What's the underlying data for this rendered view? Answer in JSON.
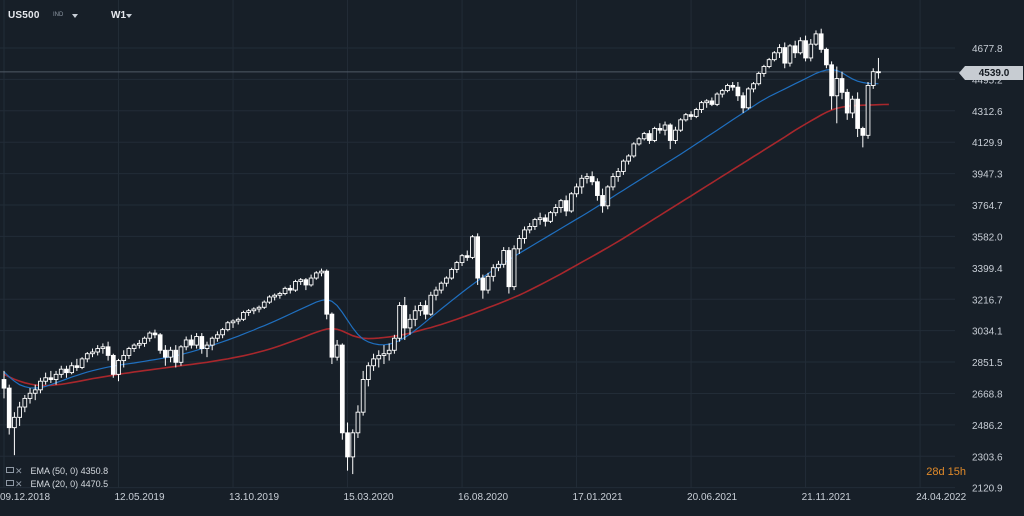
{
  "toolbar": {
    "symbol": "US500",
    "index_tag": "IND",
    "timeframe": "W1",
    "symbol_icon": "chevron-down-icon",
    "timeframe_icon": "chevron-down-icon"
  },
  "indicators": [
    {
      "label": "EMA (50, 0) 4350.8",
      "color": "#a8272c"
    },
    {
      "label": "EMA (20, 0) 4470.5",
      "color": "#1f6fbf"
    }
  ],
  "countdown": "28d 15h",
  "current_price": "4539.0",
  "colors": {
    "background": "#171f28",
    "grid": "#222c37",
    "candle": "#ffffff",
    "ema50": "#a8272c",
    "ema20": "#1f6fbf",
    "countdown": "#e08a2a",
    "price_line": "#505a66"
  },
  "chart_data": {
    "type": "candlestick",
    "y_ticks": [
      "4677.8",
      "4495.2",
      "4312.6",
      "4129.9",
      "3947.3",
      "3764.7",
      "3582.0",
      "3399.4",
      "3216.7",
      "3034.1",
      "2851.5",
      "2668.8",
      "2486.2",
      "2303.6",
      "2120.9"
    ],
    "y_tick_values": [
      4677.8,
      4495.2,
      4312.6,
      4129.9,
      3947.3,
      3764.7,
      3582.0,
      3399.4,
      3216.7,
      3034.1,
      2851.5,
      2668.8,
      2486.2,
      2303.6,
      2120.9
    ],
    "ylim": [
      2100,
      4790
    ],
    "x_ticks": [
      "09.12.2018",
      "12.05.2019",
      "13.10.2019",
      "15.03.2020",
      "16.08.2020",
      "17.01.2021",
      "20.06.2021",
      "21.11.2021",
      "24.04.2022"
    ],
    "x_tick_weeks": [
      0,
      22,
      44,
      66,
      88,
      110,
      132,
      154,
      176
    ],
    "current_price": 4539.0,
    "series": [
      {
        "name": "EMA (50, 0)",
        "values": [
          2780,
          2765,
          2752,
          2741,
          2731,
          2724,
          2718,
          2716,
          2715,
          2716,
          2719,
          2722,
          2727,
          2732,
          2737,
          2743,
          2749,
          2755,
          2760,
          2765,
          2770,
          2775,
          2780,
          2785,
          2789,
          2794,
          2798,
          2802,
          2806,
          2810,
          2814,
          2818,
          2822,
          2826,
          2830,
          2834,
          2838,
          2842,
          2846,
          2850,
          2855,
          2860,
          2865,
          2870,
          2876,
          2882,
          2888,
          2895,
          2902,
          2910,
          2918,
          2927,
          2936,
          2946,
          2957,
          2968,
          2979,
          2990,
          3002,
          3014,
          3025,
          3035,
          3043,
          3046,
          3042,
          3032,
          3018,
          3005,
          2996,
          2990,
          2988,
          2989,
          2991,
          2994,
          2998,
          3002,
          3007,
          3013,
          3020,
          3028,
          3036,
          3044,
          3052,
          3061,
          3070,
          3080,
          3090,
          3100,
          3111,
          3122,
          3133,
          3145,
          3156,
          3168,
          3179,
          3191,
          3203,
          3215,
          3228,
          3241,
          3255,
          3270,
          3285,
          3300,
          3316,
          3332,
          3348,
          3364,
          3381,
          3398,
          3415,
          3432,
          3449,
          3466,
          3483,
          3500,
          3517,
          3535,
          3553,
          3571,
          3590,
          3609,
          3628,
          3647,
          3666,
          3685,
          3704,
          3723,
          3742,
          3761,
          3780,
          3799,
          3818,
          3837,
          3856,
          3875,
          3894,
          3913,
          3932,
          3951,
          3970,
          3989,
          4008,
          4027,
          4046,
          4065,
          4084,
          4103,
          4122,
          4141,
          4160,
          4180,
          4200,
          4218,
          4236,
          4254,
          4271,
          4288,
          4304,
          4317,
          4327,
          4334,
          4339,
          4342,
          4344,
          4345,
          4346,
          4347,
          4348,
          4349,
          4350
        ]
      },
      {
        "name": "EMA (20, 0)",
        "values": [
          2795,
          2765,
          2740,
          2720,
          2708,
          2702,
          2700,
          2703,
          2710,
          2720,
          2731,
          2742,
          2753,
          2764,
          2774,
          2784,
          2793,
          2801,
          2809,
          2816,
          2822,
          2828,
          2833,
          2838,
          2842,
          2846,
          2851,
          2856,
          2861,
          2866,
          2871,
          2876,
          2882,
          2888,
          2895,
          2903,
          2911,
          2920,
          2929,
          2939,
          2949,
          2959,
          2969,
          2980,
          2991,
          3002,
          3014,
          3026,
          3038,
          3051,
          3063,
          3076,
          3089,
          3103,
          3117,
          3131,
          3145,
          3159,
          3173,
          3187,
          3200,
          3210,
          3215,
          3205,
          3180,
          3140,
          3095,
          3050,
          3012,
          2985,
          2968,
          2958,
          2953,
          2952,
          2956,
          2964,
          2977,
          2994,
          3014,
          3037,
          3060,
          3085,
          3110,
          3135,
          3160,
          3184,
          3208,
          3232,
          3256,
          3279,
          3302,
          3324,
          3345,
          3366,
          3387,
          3407,
          3427,
          3446,
          3465,
          3484,
          3502,
          3520,
          3538,
          3556,
          3574,
          3592,
          3610,
          3628,
          3646,
          3664,
          3682,
          3700,
          3718,
          3737,
          3756,
          3775,
          3794,
          3813,
          3832,
          3851,
          3870,
          3889,
          3908,
          3927,
          3946,
          3965,
          3984,
          4003,
          4022,
          4041,
          4060,
          4080,
          4100,
          4120,
          4140,
          4160,
          4180,
          4200,
          4220,
          4240,
          4260,
          4280,
          4300,
          4320,
          4340,
          4360,
          4378,
          4395,
          4410,
          4425,
          4440,
          4455,
          4470,
          4485,
          4500,
          4515,
          4530,
          4542,
          4550,
          4552,
          4547,
          4535,
          4515,
          4498,
          4485,
          4477,
          4472,
          4470,
          4470
        ]
      }
    ],
    "candles": [
      [
        2750,
        2800,
        2640,
        2700
      ],
      [
        2700,
        2720,
        2430,
        2470
      ],
      [
        2470,
        2560,
        2310,
        2530
      ],
      [
        2530,
        2620,
        2480,
        2590
      ],
      [
        2590,
        2660,
        2560,
        2640
      ],
      [
        2640,
        2700,
        2610,
        2670
      ],
      [
        2670,
        2720,
        2630,
        2690
      ],
      [
        2690,
        2760,
        2670,
        2740
      ],
      [
        2740,
        2790,
        2720,
        2760
      ],
      [
        2760,
        2800,
        2730,
        2750
      ],
      [
        2750,
        2800,
        2720,
        2780
      ],
      [
        2780,
        2830,
        2760,
        2810
      ],
      [
        2810,
        2830,
        2760,
        2790
      ],
      [
        2790,
        2850,
        2780,
        2830
      ],
      [
        2830,
        2870,
        2800,
        2820
      ],
      [
        2820,
        2880,
        2810,
        2870
      ],
      [
        2870,
        2910,
        2850,
        2900
      ],
      [
        2900,
        2930,
        2880,
        2910
      ],
      [
        2910,
        2950,
        2890,
        2930
      ],
      [
        2930,
        2960,
        2900,
        2940
      ],
      [
        2940,
        2970,
        2860,
        2890
      ],
      [
        2890,
        2900,
        2760,
        2780
      ],
      [
        2780,
        2870,
        2740,
        2860
      ],
      [
        2860,
        2920,
        2820,
        2890
      ],
      [
        2890,
        2940,
        2870,
        2930
      ],
      [
        2930,
        2960,
        2910,
        2950
      ],
      [
        2950,
        2980,
        2930,
        2960
      ],
      [
        2960,
        3000,
        2940,
        2990
      ],
      [
        2990,
        3030,
        2970,
        3020
      ],
      [
        3020,
        3040,
        2990,
        3010
      ],
      [
        3010,
        3020,
        2900,
        2920
      ],
      [
        2920,
        2950,
        2830,
        2880
      ],
      [
        2880,
        2940,
        2850,
        2920
      ],
      [
        2920,
        2950,
        2820,
        2850
      ],
      [
        2850,
        2950,
        2830,
        2940
      ],
      [
        2940,
        3000,
        2920,
        2980
      ],
      [
        2980,
        3010,
        2930,
        2950
      ],
      [
        2950,
        3020,
        2930,
        3000
      ],
      [
        3000,
        3020,
        2900,
        2930
      ],
      [
        2930,
        2970,
        2880,
        2950
      ],
      [
        2950,
        3000,
        2920,
        2990
      ],
      [
        2990,
        3030,
        2970,
        3010
      ],
      [
        3010,
        3050,
        2990,
        3040
      ],
      [
        3040,
        3090,
        3030,
        3080
      ],
      [
        3080,
        3100,
        3050,
        3090
      ],
      [
        3090,
        3110,
        3070,
        3100
      ],
      [
        3100,
        3150,
        3090,
        3140
      ],
      [
        3140,
        3160,
        3120,
        3150
      ],
      [
        3150,
        3170,
        3130,
        3160
      ],
      [
        3160,
        3180,
        3140,
        3170
      ],
      [
        3170,
        3210,
        3160,
        3200
      ],
      [
        3200,
        3240,
        3190,
        3230
      ],
      [
        3230,
        3250,
        3210,
        3240
      ],
      [
        3240,
        3260,
        3220,
        3250
      ],
      [
        3250,
        3290,
        3240,
        3280
      ],
      [
        3280,
        3300,
        3250,
        3270
      ],
      [
        3270,
        3330,
        3260,
        3320
      ],
      [
        3320,
        3340,
        3300,
        3330
      ],
      [
        3330,
        3340,
        3270,
        3300
      ],
      [
        3300,
        3360,
        3290,
        3340
      ],
      [
        3340,
        3380,
        3330,
        3370
      ],
      [
        3370,
        3395,
        3350,
        3380
      ],
      [
        3380,
        3390,
        3100,
        3130
      ],
      [
        3130,
        3140,
        2840,
        2880
      ],
      [
        2880,
        2980,
        2860,
        2950
      ],
      [
        2950,
        2960,
        2400,
        2440
      ],
      [
        2440,
        2500,
        2220,
        2300
      ],
      [
        2300,
        2460,
        2200,
        2440
      ],
      [
        2440,
        2600,
        2410,
        2560
      ],
      [
        2560,
        2800,
        2540,
        2750
      ],
      [
        2750,
        2850,
        2710,
        2830
      ],
      [
        2830,
        2900,
        2800,
        2870
      ],
      [
        2870,
        2920,
        2820,
        2890
      ],
      [
        2890,
        2950,
        2840,
        2900
      ],
      [
        2900,
        2960,
        2860,
        2920
      ],
      [
        2920,
        3010,
        2900,
        2990
      ],
      [
        2990,
        3200,
        2970,
        3180
      ],
      [
        3180,
        3230,
        2980,
        3050
      ],
      [
        3050,
        3130,
        3010,
        3100
      ],
      [
        3100,
        3180,
        3060,
        3150
      ],
      [
        3150,
        3200,
        3120,
        3180
      ],
      [
        3180,
        3210,
        3100,
        3130
      ],
      [
        3130,
        3260,
        3120,
        3240
      ],
      [
        3240,
        3290,
        3210,
        3270
      ],
      [
        3270,
        3320,
        3250,
        3310
      ],
      [
        3310,
        3350,
        3290,
        3340
      ],
      [
        3340,
        3400,
        3330,
        3390
      ],
      [
        3390,
        3440,
        3370,
        3430
      ],
      [
        3430,
        3480,
        3410,
        3470
      ],
      [
        3470,
        3500,
        3440,
        3460
      ],
      [
        3460,
        3590,
        3450,
        3580
      ],
      [
        3580,
        3600,
        3300,
        3340
      ],
      [
        3340,
        3360,
        3220,
        3270
      ],
      [
        3270,
        3370,
        3250,
        3350
      ],
      [
        3350,
        3420,
        3320,
        3400
      ],
      [
        3400,
        3440,
        3380,
        3420
      ],
      [
        3420,
        3520,
        3400,
        3500
      ],
      [
        3500,
        3520,
        3250,
        3290
      ],
      [
        3290,
        3530,
        3270,
        3510
      ],
      [
        3510,
        3590,
        3480,
        3570
      ],
      [
        3570,
        3640,
        3540,
        3620
      ],
      [
        3620,
        3660,
        3600,
        3640
      ],
      [
        3640,
        3690,
        3620,
        3680
      ],
      [
        3680,
        3720,
        3650,
        3690
      ],
      [
        3690,
        3710,
        3640,
        3670
      ],
      [
        3670,
        3730,
        3660,
        3720
      ],
      [
        3720,
        3770,
        3700,
        3750
      ],
      [
        3750,
        3800,
        3720,
        3790
      ],
      [
        3790,
        3820,
        3700,
        3730
      ],
      [
        3730,
        3840,
        3720,
        3830
      ],
      [
        3830,
        3890,
        3810,
        3870
      ],
      [
        3870,
        3940,
        3830,
        3920
      ],
      [
        3920,
        3950,
        3890,
        3930
      ],
      [
        3930,
        3960,
        3880,
        3900
      ],
      [
        3900,
        3920,
        3790,
        3820
      ],
      [
        3820,
        3860,
        3720,
        3760
      ],
      [
        3760,
        3880,
        3740,
        3870
      ],
      [
        3870,
        3950,
        3850,
        3930
      ],
      [
        3930,
        3980,
        3900,
        3960
      ],
      [
        3960,
        4030,
        3940,
        4020
      ],
      [
        4020,
        4060,
        4000,
        4050
      ],
      [
        4050,
        4130,
        4040,
        4120
      ],
      [
        4120,
        4160,
        4110,
        4150
      ],
      [
        4150,
        4190,
        4140,
        4180
      ],
      [
        4180,
        4200,
        4120,
        4140
      ],
      [
        4140,
        4220,
        4130,
        4210
      ],
      [
        4210,
        4240,
        4180,
        4200
      ],
      [
        4200,
        4250,
        4170,
        4230
      ],
      [
        4230,
        4240,
        4090,
        4140
      ],
      [
        4140,
        4220,
        4120,
        4200
      ],
      [
        4200,
        4270,
        4190,
        4260
      ],
      [
        4260,
        4300,
        4250,
        4290
      ],
      [
        4290,
        4310,
        4260,
        4280
      ],
      [
        4280,
        4330,
        4270,
        4320
      ],
      [
        4320,
        4370,
        4300,
        4360
      ],
      [
        4360,
        4380,
        4330,
        4370
      ],
      [
        4370,
        4390,
        4340,
        4350
      ],
      [
        4350,
        4420,
        4340,
        4410
      ],
      [
        4410,
        4440,
        4390,
        4430
      ],
      [
        4430,
        4470,
        4420,
        4460
      ],
      [
        4460,
        4480,
        4430,
        4450
      ],
      [
        4450,
        4480,
        4370,
        4400
      ],
      [
        4400,
        4420,
        4300,
        4330
      ],
      [
        4330,
        4450,
        4320,
        4440
      ],
      [
        4440,
        4480,
        4420,
        4470
      ],
      [
        4470,
        4540,
        4460,
        4530
      ],
      [
        4530,
        4580,
        4510,
        4570
      ],
      [
        4570,
        4620,
        4560,
        4610
      ],
      [
        4610,
        4660,
        4600,
        4650
      ],
      [
        4650,
        4700,
        4620,
        4680
      ],
      [
        4680,
        4710,
        4560,
        4590
      ],
      [
        4590,
        4700,
        4570,
        4690
      ],
      [
        4690,
        4720,
        4620,
        4650
      ],
      [
        4650,
        4740,
        4640,
        4720
      ],
      [
        4720,
        4750,
        4600,
        4620
      ],
      [
        4620,
        4730,
        4600,
        4700
      ],
      [
        4700,
        4780,
        4690,
        4760
      ],
      [
        4760,
        4790,
        4650,
        4670
      ],
      [
        4670,
        4680,
        4560,
        4580
      ],
      [
        4580,
        4600,
        4320,
        4400
      ],
      [
        4400,
        4570,
        4240,
        4500
      ],
      [
        4500,
        4540,
        4380,
        4420
      ],
      [
        4420,
        4440,
        4260,
        4300
      ],
      [
        4300,
        4400,
        4270,
        4380
      ],
      [
        4380,
        4420,
        4160,
        4210
      ],
      [
        4210,
        4220,
        4100,
        4170
      ],
      [
        4170,
        4480,
        4150,
        4460
      ],
      [
        4460,
        4560,
        4440,
        4540
      ],
      [
        4540,
        4620,
        4500,
        4539
      ]
    ]
  }
}
